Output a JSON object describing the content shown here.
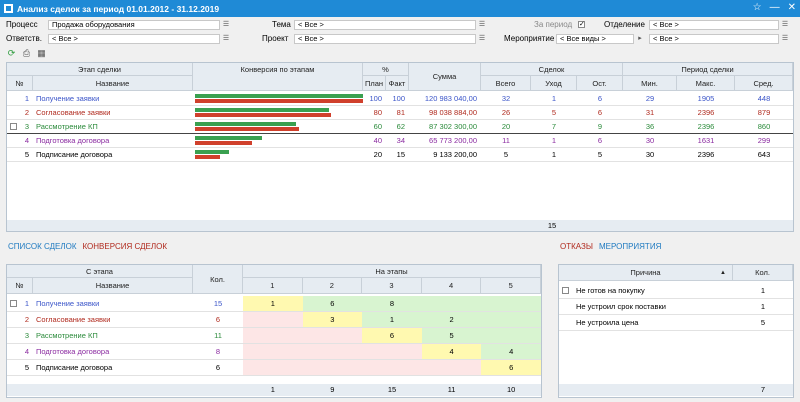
{
  "window": {
    "title": "Анализ сделок за период 01.01.2012 - 31.12.2019",
    "star": "☆",
    "minimize": "—",
    "close": "✕"
  },
  "filters": {
    "process_label": "Процесс",
    "process_value": "Продажа оборудования",
    "resp_label": "Ответств.",
    "resp_value": "< Все >",
    "theme_label": "Тема",
    "theme_value": "< Все >",
    "project_label": "Проект",
    "project_value": "< Все >",
    "period_label": "За период",
    "period_check": "✓",
    "dept_label": "Отделение",
    "dept_value": "< Все >",
    "event_label": "Мероприятие",
    "event_value": "< Все виды >",
    "event_value2": "< Все >"
  },
  "top_grid": {
    "h_stage": "Этап сделки",
    "h_no": "№",
    "h_name": "Название",
    "h_conv": "Конверсия по этапам",
    "h_pct": "%",
    "h_plan": "План",
    "h_fact": "Факт",
    "h_sum": "Сумма",
    "h_deal": "Сделок",
    "h_total": "Всего",
    "h_left": "Уход",
    "h_rest": "Ост.",
    "h_period": "Период сделки",
    "h_min": "Мин.",
    "h_max": "Макс.",
    "h_avg": "Сред.",
    "rows": [
      {
        "no": "1",
        "name": "Получение заявки",
        "plan": "100",
        "fact": "100",
        "sum": "120 983 040,00",
        "total": "32",
        "left": "1",
        "rest": "6",
        "min": "29",
        "max": "1905",
        "avg": "448",
        "color": "#3b55c9",
        "bar_plan": 1.0,
        "bar_fact": 1.0
      },
      {
        "no": "2",
        "name": "Согласование заявки",
        "plan": "80",
        "fact": "81",
        "sum": "98 038 884,00",
        "total": "26",
        "left": "5",
        "rest": "6",
        "min": "31",
        "max": "2396",
        "avg": "879",
        "color": "#b02a1e",
        "bar_plan": 0.8,
        "bar_fact": 0.81
      },
      {
        "no": "3",
        "name": "Рассмотрение КП",
        "plan": "60",
        "fact": "62",
        "sum": "87 302 300,00",
        "total": "20",
        "left": "7",
        "rest": "9",
        "min": "36",
        "max": "2396",
        "avg": "860",
        "color": "#2a8a3a",
        "bar_plan": 0.6,
        "bar_fact": 0.62
      },
      {
        "no": "4",
        "name": "Подготовка договора",
        "plan": "40",
        "fact": "34",
        "sum": "65 773 200,00",
        "total": "11",
        "left": "1",
        "rest": "6",
        "min": "30",
        "max": "1631",
        "avg": "299",
        "color": "#8a2aa0",
        "bar_plan": 0.4,
        "bar_fact": 0.34
      },
      {
        "no": "5",
        "name": "Подписание договора",
        "plan": "20",
        "fact": "15",
        "sum": "9 133 200,00",
        "total": "5",
        "left": "1",
        "rest": "5",
        "min": "30",
        "max": "2396",
        "avg": "643",
        "color": "#000000",
        "bar_plan": 0.2,
        "bar_fact": 0.15
      }
    ],
    "footer_total": "15"
  },
  "left_tabs": {
    "list": "СПИСОК СДЕЛОК",
    "conv": "КОНВЕРСИЯ СДЕЛОК"
  },
  "right_tabs": {
    "refusals": "ОТКАЗЫ",
    "events": "МЕРОПРИЯТИЯ"
  },
  "bottom_grid": {
    "h_from": "С этапа",
    "h_no": "№",
    "h_name": "Название",
    "h_qty": "Кол.",
    "h_to": "На этапы",
    "cols": [
      "1",
      "2",
      "3",
      "4",
      "5"
    ],
    "rows": [
      {
        "no": "1",
        "name": "Получение заявки",
        "qty": "15",
        "cells": [
          "1",
          "6",
          "8",
          "",
          ""
        ],
        "color": "#3b55c9"
      },
      {
        "no": "2",
        "name": "Согласование заявки",
        "qty": "6",
        "cells": [
          "",
          "3",
          "1",
          "2",
          ""
        ],
        "color": "#b02a1e"
      },
      {
        "no": "3",
        "name": "Рассмотрение КП",
        "qty": "11",
        "cells": [
          "",
          "",
          "6",
          "5",
          ""
        ],
        "color": "#2a8a3a"
      },
      {
        "no": "4",
        "name": "Подготовка договора",
        "qty": "8",
        "cells": [
          "",
          "",
          "",
          "4",
          "4"
        ],
        "color": "#8a2aa0"
      },
      {
        "no": "5",
        "name": "Подписание договора",
        "qty": "6",
        "cells": [
          "",
          "",
          "",
          "",
          "6"
        ],
        "color": "#000000"
      }
    ],
    "footer": [
      "1",
      "9",
      "15",
      "11",
      "10"
    ]
  },
  "reasons_grid": {
    "h_reason": "Причина",
    "h_qty": "Кол.",
    "rows": [
      {
        "name": "Не готов на покупку",
        "qty": "1"
      },
      {
        "name": "Не устроил срок поставки",
        "qty": "1"
      },
      {
        "name": "Не устроила цена",
        "qty": "5"
      }
    ],
    "footer": "7"
  },
  "colors": {
    "plan_bar": "#3aa050",
    "fact_bar": "#d0402c",
    "yellow": "#fff9b0",
    "green": "#d8f4d0",
    "pink": "#fde6e6"
  }
}
